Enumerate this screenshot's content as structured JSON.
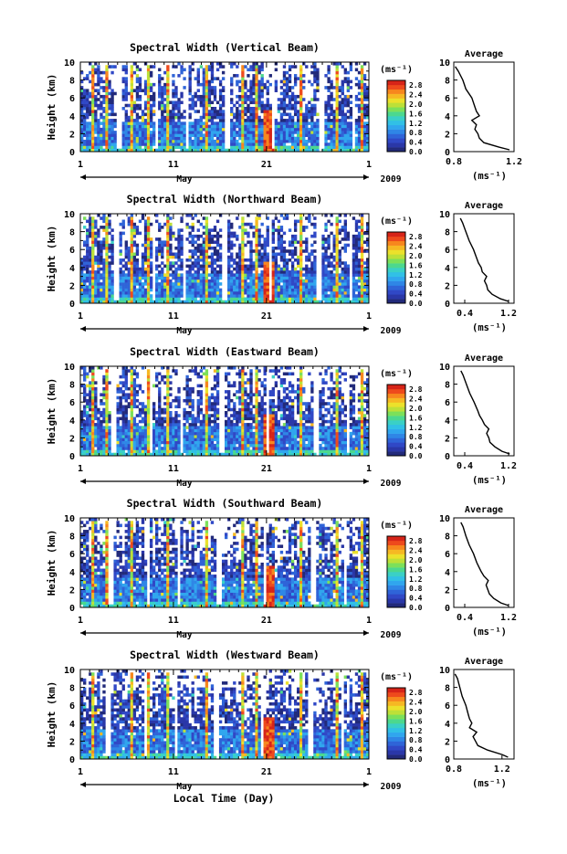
{
  "figure": {
    "xlabel": "Local Time (Day)",
    "year": "2009",
    "month": "May"
  },
  "colors": {
    "scale": [
      "#222a7a",
      "#2a37a8",
      "#3048c6",
      "#2f64d8",
      "#2f86e6",
      "#30a6ee",
      "#31c0e6",
      "#3ad0c6",
      "#4cd88e",
      "#7ce05a",
      "#bde038",
      "#ece12b",
      "#f6b823",
      "#f7871d",
      "#ee4a1c",
      "#d62418"
    ]
  },
  "chart_data": [
    {
      "type": "heatmap",
      "title": "Spectral Width (Vertical Beam)",
      "ylabel": "Height (km)",
      "unit_label": "(ms⁻¹)",
      "x_ticks": [
        "1",
        "11",
        "21",
        "1"
      ],
      "xlim_days": [
        1,
        32
      ],
      "ylim": [
        0,
        10
      ],
      "y_ticks": [
        "0",
        "2",
        "4",
        "6",
        "8",
        "10"
      ],
      "colorbar_ticks": [
        "0.0",
        "0.4",
        "0.8",
        "1.2",
        "1.6",
        "2.0",
        "2.4",
        "2.8"
      ],
      "colorbar_range": [
        0.0,
        3.0
      ],
      "profile": {
        "title": "Average",
        "xlabel": "(ms⁻¹)",
        "x_ticks": [
          "0.8",
          "1.2"
        ],
        "xlim": [
          0.8,
          1.2
        ],
        "heights": [
          0.2,
          0.5,
          1,
          1.5,
          2,
          2.5,
          3,
          3.5,
          4,
          4.5,
          5,
          6,
          7,
          8,
          9,
          9.5
        ],
        "values": [
          1.17,
          1.1,
          1.0,
          0.97,
          0.96,
          0.94,
          0.95,
          0.92,
          0.97,
          0.95,
          0.94,
          0.92,
          0.88,
          0.86,
          0.83,
          0.81
        ]
      }
    },
    {
      "type": "heatmap",
      "title": "Spectral Width (Northward Beam)",
      "ylabel": "Height (km)",
      "unit_label": "(ms⁻¹)",
      "x_ticks": [
        "1",
        "11",
        "21",
        "1"
      ],
      "xlim_days": [
        1,
        32
      ],
      "ylim": [
        0,
        10
      ],
      "y_ticks": [
        "0",
        "2",
        "4",
        "6",
        "8",
        "10"
      ],
      "colorbar_ticks": [
        "0.0",
        "0.4",
        "0.8",
        "1.2",
        "1.6",
        "2.0",
        "2.4",
        "2.8"
      ],
      "colorbar_range": [
        0.0,
        3.0
      ],
      "profile": {
        "title": "Average",
        "xlabel": "(ms⁻¹)",
        "x_ticks": [
          "0.4",
          "1.2"
        ],
        "xlim": [
          0.2,
          1.3
        ],
        "heights": [
          0.2,
          0.5,
          1,
          1.5,
          2,
          2.5,
          3,
          3.5,
          4,
          4.5,
          5,
          6,
          7,
          8,
          9,
          9.5
        ],
        "values": [
          1.2,
          1.05,
          0.9,
          0.82,
          0.8,
          0.76,
          0.8,
          0.72,
          0.7,
          0.65,
          0.62,
          0.56,
          0.48,
          0.42,
          0.36,
          0.32
        ]
      }
    },
    {
      "type": "heatmap",
      "title": "Spectral Width (Eastward Beam)",
      "ylabel": "Height (km)",
      "unit_label": "(ms⁻¹)",
      "x_ticks": [
        "1",
        "11",
        "21",
        "1"
      ],
      "xlim_days": [
        1,
        32
      ],
      "ylim": [
        0,
        10
      ],
      "y_ticks": [
        "0",
        "2",
        "4",
        "6",
        "8",
        "10"
      ],
      "colorbar_ticks": [
        "0.0",
        "0.4",
        "0.8",
        "1.2",
        "1.6",
        "2.0",
        "2.4",
        "2.8"
      ],
      "colorbar_range": [
        0.0,
        3.0
      ],
      "profile": {
        "title": "Average",
        "xlabel": "(ms⁻¹)",
        "x_ticks": [
          "0.4",
          "1.2"
        ],
        "xlim": [
          0.2,
          1.3
        ],
        "heights": [
          0.2,
          0.5,
          1,
          1.5,
          2,
          2.5,
          3,
          3.5,
          4,
          4.5,
          5,
          6,
          7,
          8,
          9,
          9.5
        ],
        "values": [
          1.22,
          1.08,
          0.95,
          0.86,
          0.84,
          0.8,
          0.84,
          0.76,
          0.72,
          0.67,
          0.64,
          0.57,
          0.49,
          0.43,
          0.37,
          0.33
        ]
      }
    },
    {
      "type": "heatmap",
      "title": "Spectral Width (Southward Beam)",
      "ylabel": "Height (km)",
      "unit_label": "(ms⁻¹)",
      "x_ticks": [
        "1",
        "11",
        "21",
        "1"
      ],
      "xlim_days": [
        1,
        32
      ],
      "ylim": [
        0,
        10
      ],
      "y_ticks": [
        "0",
        "2",
        "4",
        "6",
        "8",
        "10"
      ],
      "colorbar_ticks": [
        "0.0",
        "0.4",
        "0.8",
        "1.2",
        "1.6",
        "2.0",
        "2.4",
        "2.8"
      ],
      "colorbar_range": [
        0.0,
        3.0
      ],
      "profile": {
        "title": "Average",
        "xlabel": "(ms⁻¹)",
        "x_ticks": [
          "0.4",
          "1.2"
        ],
        "xlim": [
          0.2,
          1.3
        ],
        "heights": [
          0.2,
          0.5,
          1,
          1.5,
          2,
          2.5,
          3,
          3.5,
          4,
          4.5,
          5,
          6,
          7,
          8,
          9,
          9.5
        ],
        "values": [
          1.2,
          1.06,
          0.93,
          0.85,
          0.82,
          0.79,
          0.83,
          0.75,
          0.7,
          0.66,
          0.62,
          0.56,
          0.48,
          0.42,
          0.37,
          0.33
        ]
      }
    },
    {
      "type": "heatmap",
      "title": "Spectral Width (Westward Beam)",
      "ylabel": "Height (km)",
      "unit_label": "(ms⁻¹)",
      "x_ticks": [
        "1",
        "11",
        "21",
        "1"
      ],
      "xlim_days": [
        1,
        32
      ],
      "ylim": [
        0,
        10
      ],
      "y_ticks": [
        "0",
        "2",
        "4",
        "6",
        "8",
        "10"
      ],
      "colorbar_ticks": [
        "0.0",
        "0.4",
        "0.8",
        "1.2",
        "1.6",
        "2.0",
        "2.4",
        "2.8"
      ],
      "colorbar_range": [
        0.0,
        3.0
      ],
      "profile": {
        "title": "Average",
        "xlabel": "(ms⁻¹)",
        "x_ticks": [
          "0.8",
          "1.2"
        ],
        "xlim": [
          0.8,
          1.3
        ],
        "heights": [
          0.2,
          0.5,
          1,
          1.5,
          2,
          2.5,
          3,
          3.5,
          4,
          4.5,
          5,
          6,
          7,
          8,
          9,
          9.5
        ],
        "values": [
          1.25,
          1.2,
          1.08,
          1.0,
          0.98,
          0.96,
          0.99,
          0.93,
          0.95,
          0.93,
          0.92,
          0.9,
          0.87,
          0.85,
          0.83,
          0.81
        ]
      }
    }
  ]
}
